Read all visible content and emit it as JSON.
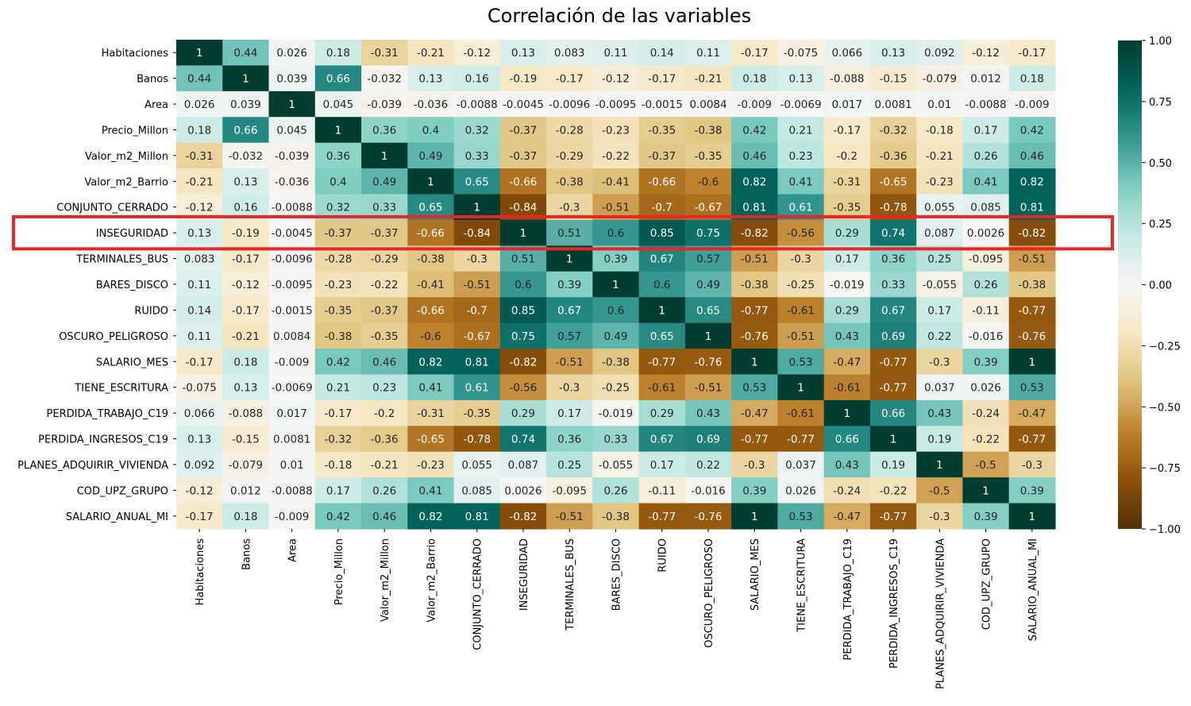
{
  "chart_data": {
    "type": "heatmap",
    "title": "Correlación de las variables",
    "labels": [
      "Habitaciones",
      "Banos",
      "Area",
      "Precio_Millon",
      "Valor_m2_Millon",
      "Valor_m2_Barrio",
      "CONJUNTO_CERRADO",
      "INSEGURIDAD",
      "TERMINALES_BUS",
      "BARES_DISCO",
      "RUIDO",
      "OSCURO_PELIGROSO",
      "SALARIO_MES",
      "TIENE_ESCRITURA",
      "PERDIDA_TRABAJO_C19",
      "PERDIDA_INGRESOS_C19",
      "PLANES_ADQUIRIR_VIVIENDA",
      "COD_UPZ_GRUPO",
      "SALARIO_ANUAL_MI"
    ],
    "matrix": [
      [
        "1",
        "0.44",
        "0.026",
        "0.18",
        "-0.31",
        "-0.21",
        "-0.12",
        "0.13",
        "0.083",
        "0.11",
        "0.14",
        "0.11",
        "-0.17",
        "-0.075",
        "0.066",
        "0.13",
        "0.092",
        "-0.12",
        "-0.17"
      ],
      [
        "0.44",
        "1",
        "0.039",
        "0.66",
        "-0.032",
        "0.13",
        "0.16",
        "-0.19",
        "-0.17",
        "-0.12",
        "-0.17",
        "-0.21",
        "0.18",
        "0.13",
        "-0.088",
        "-0.15",
        "-0.079",
        "0.012",
        "0.18"
      ],
      [
        "0.026",
        "0.039",
        "1",
        "0.045",
        "-0.039",
        "-0.036",
        "-0.0088",
        "-0.0045",
        "-0.0096",
        "-0.0095",
        "-0.0015",
        "0.0084",
        "-0.009",
        "-0.0069",
        "0.017",
        "0.0081",
        "0.01",
        "-0.0088",
        "-0.009"
      ],
      [
        "0.18",
        "0.66",
        "0.045",
        "1",
        "0.36",
        "0.4",
        "0.32",
        "-0.37",
        "-0.28",
        "-0.23",
        "-0.35",
        "-0.38",
        "0.42",
        "0.21",
        "-0.17",
        "-0.32",
        "-0.18",
        "0.17",
        "0.42"
      ],
      [
        "-0.31",
        "-0.032",
        "-0.039",
        "0.36",
        "1",
        "0.49",
        "0.33",
        "-0.37",
        "-0.29",
        "-0.22",
        "-0.37",
        "-0.35",
        "0.46",
        "0.23",
        "-0.2",
        "-0.36",
        "-0.21",
        "0.26",
        "0.46"
      ],
      [
        "-0.21",
        "0.13",
        "-0.036",
        "0.4",
        "0.49",
        "1",
        "0.65",
        "-0.66",
        "-0.38",
        "-0.41",
        "-0.66",
        "-0.6",
        "0.82",
        "0.41",
        "-0.31",
        "-0.65",
        "-0.23",
        "0.41",
        "0.82"
      ],
      [
        "-0.12",
        "0.16",
        "-0.0088",
        "0.32",
        "0.33",
        "0.65",
        "1",
        "-0.84",
        "-0.3",
        "-0.51",
        "-0.7",
        "-0.67",
        "0.81",
        "0.61",
        "-0.35",
        "-0.78",
        "0.055",
        "0.085",
        "0.81"
      ],
      [
        "0.13",
        "-0.19",
        "-0.0045",
        "-0.37",
        "-0.37",
        "-0.66",
        "-0.84",
        "1",
        "0.51",
        "0.6",
        "0.85",
        "0.75",
        "-0.82",
        "-0.56",
        "0.29",
        "0.74",
        "0.087",
        "0.0026",
        "-0.82"
      ],
      [
        "0.083",
        "-0.17",
        "-0.0096",
        "-0.28",
        "-0.29",
        "-0.38",
        "-0.3",
        "0.51",
        "1",
        "0.39",
        "0.67",
        "0.57",
        "-0.51",
        "-0.3",
        "0.17",
        "0.36",
        "0.25",
        "-0.095",
        "-0.51"
      ],
      [
        "0.11",
        "-0.12",
        "-0.0095",
        "-0.23",
        "-0.22",
        "-0.41",
        "-0.51",
        "0.6",
        "0.39",
        "1",
        "0.6",
        "0.49",
        "-0.38",
        "-0.25",
        "-0.019",
        "0.33",
        "-0.055",
        "0.26",
        "-0.38"
      ],
      [
        "0.14",
        "-0.17",
        "-0.0015",
        "-0.35",
        "-0.37",
        "-0.66",
        "-0.7",
        "0.85",
        "0.67",
        "0.6",
        "1",
        "0.65",
        "-0.77",
        "-0.61",
        "0.29",
        "0.67",
        "0.17",
        "-0.11",
        "-0.77"
      ],
      [
        "0.11",
        "-0.21",
        "0.0084",
        "-0.38",
        "-0.35",
        "-0.6",
        "-0.67",
        "0.75",
        "0.57",
        "0.49",
        "0.65",
        "1",
        "-0.76",
        "-0.51",
        "0.43",
        "0.69",
        "0.22",
        "-0.016",
        "-0.76"
      ],
      [
        "-0.17",
        "0.18",
        "-0.009",
        "0.42",
        "0.46",
        "0.82",
        "0.81",
        "-0.82",
        "-0.51",
        "-0.38",
        "-0.77",
        "-0.76",
        "1",
        "0.53",
        "-0.47",
        "-0.77",
        "-0.3",
        "0.39",
        "1"
      ],
      [
        "-0.075",
        "0.13",
        "-0.0069",
        "0.21",
        "0.23",
        "0.41",
        "0.61",
        "-0.56",
        "-0.3",
        "-0.25",
        "-0.61",
        "-0.51",
        "0.53",
        "1",
        "-0.61",
        "-0.77",
        "0.037",
        "0.026",
        "0.53"
      ],
      [
        "0.066",
        "-0.088",
        "0.017",
        "-0.17",
        "-0.2",
        "-0.31",
        "-0.35",
        "0.29",
        "0.17",
        "-0.019",
        "0.29",
        "0.43",
        "-0.47",
        "-0.61",
        "1",
        "0.66",
        "0.43",
        "-0.24",
        "-0.47"
      ],
      [
        "0.13",
        "-0.15",
        "0.0081",
        "-0.32",
        "-0.36",
        "-0.65",
        "-0.78",
        "0.74",
        "0.36",
        "0.33",
        "0.67",
        "0.69",
        "-0.77",
        "-0.77",
        "0.66",
        "1",
        "0.19",
        "-0.22",
        "-0.77"
      ],
      [
        "0.092",
        "-0.079",
        "0.01",
        "-0.18",
        "-0.21",
        "-0.23",
        "0.055",
        "0.087",
        "0.25",
        "-0.055",
        "0.17",
        "0.22",
        "-0.3",
        "0.037",
        "0.43",
        "0.19",
        "1",
        "-0.5",
        "-0.3"
      ],
      [
        "-0.12",
        "0.012",
        "-0.0088",
        "0.17",
        "0.26",
        "0.41",
        "0.085",
        "0.0026",
        "-0.095",
        "0.26",
        "-0.11",
        "-0.016",
        "0.39",
        "0.026",
        "-0.24",
        "-0.22",
        "-0.5",
        "1",
        "0.39"
      ],
      [
        "-0.17",
        "0.18",
        "-0.009",
        "0.42",
        "0.46",
        "0.82",
        "0.81",
        "-0.82",
        "-0.51",
        "-0.38",
        "-0.77",
        "-0.76",
        "1",
        "0.53",
        "-0.47",
        "-0.77",
        "-0.3",
        "0.39",
        "1"
      ]
    ],
    "vmin": -1,
    "vmax": 1,
    "colormap": "BrBG",
    "colorbar_ticks": [
      "−1.00",
      "−0.75",
      "−0.50",
      "−0.25",
      "0.00",
      "0.25",
      "0.50",
      "0.75",
      "1.00"
    ],
    "highlighted_row": "INSEGURIDAD",
    "highlight_color": "#e8262a"
  }
}
